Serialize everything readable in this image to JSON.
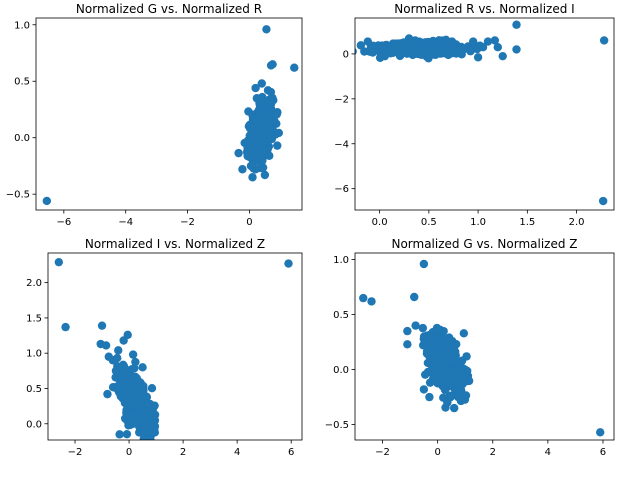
{
  "figure": {
    "point_color": "#1f77b4"
  },
  "chart_data": [
    {
      "type": "scatter",
      "title": "Normalized G vs. Normalized R",
      "xlabel": "",
      "ylabel": "",
      "xlim": [
        -6.9,
        1.7
      ],
      "ylim": [
        -0.64,
        1.06
      ],
      "xticks": [
        -6,
        -4,
        -2,
        0
      ],
      "yticks": [
        -0.5,
        0.0,
        0.5,
        1.0
      ],
      "xtick_labels": [
        "−6",
        "−4",
        "−2",
        "0"
      ],
      "ytick_labels": [
        "−0.5",
        "0.0",
        "0.5",
        "1.0"
      ],
      "cluster": {
        "x_center": 0.35,
        "x_spread": 0.2,
        "y_center": 0.05,
        "y_spread": 0.13,
        "corr": 0.5,
        "count": 450
      },
      "points": [
        [
          -6.55,
          -0.56
        ],
        [
          0.55,
          0.96
        ],
        [
          1.45,
          0.62
        ],
        [
          0.75,
          0.65
        ],
        [
          0.7,
          0.64
        ],
        [
          0.1,
          -0.35
        ],
        [
          0.5,
          -0.33
        ],
        [
          0.2,
          -0.28
        ],
        [
          0.05,
          -0.25
        ],
        [
          0.9,
          -0.07
        ],
        [
          0.4,
          0.48
        ],
        [
          0.2,
          0.44
        ],
        [
          0.6,
          0.42
        ],
        [
          0.0,
          -0.15
        ],
        [
          0.7,
          0.3
        ]
      ]
    },
    {
      "type": "scatter",
      "title": "Normalized R vs. Normalized I",
      "xlabel": "",
      "ylabel": "",
      "xlim": [
        -0.25,
        2.38
      ],
      "ylim": [
        -6.95,
        1.6
      ],
      "xticks": [
        0.0,
        0.5,
        1.0,
        1.5,
        2.0
      ],
      "yticks": [
        -6,
        -4,
        -2,
        0
      ],
      "xtick_labels": [
        "0.0",
        "0.5",
        "1.0",
        "1.5",
        "2.0"
      ],
      "ytick_labels": [
        "−6",
        "−4",
        "−2",
        "0"
      ],
      "cluster": {
        "x_center": 0.4,
        "x_spread": 0.22,
        "y_center": 0.25,
        "y_spread": 0.14,
        "corr": 0.0,
        "count": 450
      },
      "points": [
        [
          2.27,
          -6.55
        ],
        [
          2.28,
          0.6
        ],
        [
          1.39,
          1.3
        ],
        [
          1.39,
          0.2
        ],
        [
          1.25,
          -0.1
        ],
        [
          1.17,
          0.6
        ],
        [
          1.2,
          0.3
        ],
        [
          1.1,
          0.55
        ],
        [
          1.05,
          0.3
        ],
        [
          1.0,
          -0.15
        ],
        [
          -0.12,
          0.55
        ],
        [
          -0.1,
          0.1
        ],
        [
          0.95,
          0.55
        ]
      ]
    },
    {
      "type": "scatter",
      "title": "Normalized I vs. Normalized Z",
      "xlabel": "",
      "ylabel": "",
      "xlim": [
        -3.0,
        6.4
      ],
      "ylim": [
        -0.23,
        2.42
      ],
      "xticks": [
        -2,
        0,
        2,
        4,
        6
      ],
      "yticks": [
        0.0,
        0.5,
        1.0,
        1.5,
        2.0
      ],
      "xtick_labels": [
        "−2",
        "0",
        "2",
        "4",
        "6"
      ],
      "ytick_labels": [
        "0.0",
        "0.5",
        "1.0",
        "1.5",
        "2.0"
      ],
      "cluster": {
        "x_center": 0.25,
        "x_spread": 0.32,
        "y_center": 0.3,
        "y_spread": 0.22,
        "corr": -0.6,
        "count": 450
      },
      "points": [
        [
          -2.6,
          2.29
        ],
        [
          5.9,
          2.27
        ],
        [
          -2.35,
          1.37
        ],
        [
          -1.0,
          1.39
        ],
        [
          -0.05,
          1.26
        ],
        [
          -1.05,
          1.13
        ],
        [
          -0.85,
          1.11
        ],
        [
          -0.4,
          1.04
        ],
        [
          0.15,
          0.98
        ],
        [
          -0.75,
          0.95
        ],
        [
          -0.8,
          0.42
        ],
        [
          -0.35,
          -0.15
        ],
        [
          -0.2,
          1.18
        ],
        [
          -0.6,
          0.9
        ],
        [
          0.5,
          0.8
        ]
      ]
    },
    {
      "type": "scatter",
      "title": "Normalized G vs. Normalized Z",
      "xlabel": "",
      "ylabel": "",
      "xlim": [
        -3.0,
        6.4
      ],
      "ylim": [
        -0.64,
        1.06
      ],
      "xticks": [
        -2,
        0,
        2,
        4,
        6
      ],
      "yticks": [
        -0.5,
        0.0,
        0.5,
        1.0
      ],
      "xtick_labels": [
        "−2",
        "0",
        "2",
        "4",
        "6"
      ],
      "ytick_labels": [
        "−0.5",
        "0.0",
        "0.5",
        "1.0"
      ],
      "cluster": {
        "x_center": 0.25,
        "x_spread": 0.32,
        "y_center": 0.05,
        "y_spread": 0.13,
        "corr": -0.45,
        "count": 450
      },
      "points": [
        [
          5.9,
          -0.57
        ],
        [
          -2.7,
          0.65
        ],
        [
          -2.4,
          0.62
        ],
        [
          -0.85,
          0.66
        ],
        [
          -0.5,
          0.96
        ],
        [
          -1.1,
          0.35
        ],
        [
          -1.1,
          0.23
        ],
        [
          -0.5,
          -0.18
        ],
        [
          -0.3,
          -0.25
        ],
        [
          0.6,
          -0.35
        ],
        [
          0.35,
          -0.3
        ],
        [
          1.05,
          0.12
        ],
        [
          0.95,
          0.33
        ],
        [
          0.8,
          -0.25
        ],
        [
          -0.8,
          0.4
        ]
      ]
    }
  ]
}
